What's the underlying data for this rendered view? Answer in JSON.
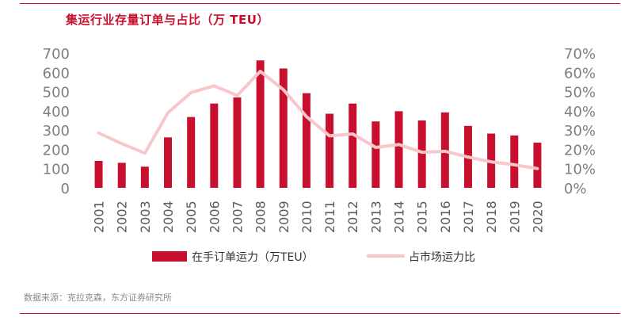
{
  "title": "集运行业存量订单与占比（万 TEU）",
  "source": "数据来源：克拉克森，东方证券研究所",
  "colors": {
    "bar": "#c8102e",
    "line": "#f9c6cb",
    "rule": "#c8102e"
  },
  "chart_data": {
    "type": "bar",
    "title": "集运行业存量订单与占比（万 TEU）",
    "categories": [
      "2001",
      "2002",
      "2003",
      "2004",
      "2005",
      "2006",
      "2007",
      "2008",
      "2009",
      "2010",
      "2011",
      "2012",
      "2013",
      "2014",
      "2015",
      "2016",
      "2017",
      "2018",
      "2019",
      "2020"
    ],
    "series": [
      {
        "name": "在手订单运力（万TEU）",
        "type": "bar",
        "axis": "left",
        "values": [
          140,
          130,
          110,
          262,
          368,
          438,
          470,
          662,
          620,
          492,
          385,
          438,
          345,
          398,
          350,
          392,
          322,
          282,
          272,
          235
        ]
      },
      {
        "name": "占市场运力比",
        "type": "line",
        "axis": "right",
        "values": [
          28.5,
          23,
          18,
          39,
          49.5,
          53,
          48,
          60.5,
          51,
          37,
          27,
          28,
          21,
          22.5,
          18.5,
          19,
          16,
          13.5,
          12,
          10
        ]
      }
    ],
    "ylim_left": [
      0,
      700
    ],
    "yticks_left": [
      "0",
      "100",
      "200",
      "300",
      "400",
      "500",
      "600",
      "700"
    ],
    "ylim_right": [
      0,
      70
    ],
    "yticks_right": [
      "0%",
      "10%",
      "20%",
      "30%",
      "40%",
      "50%",
      "60%",
      "70%"
    ],
    "legend": "bottom",
    "grid": false
  }
}
